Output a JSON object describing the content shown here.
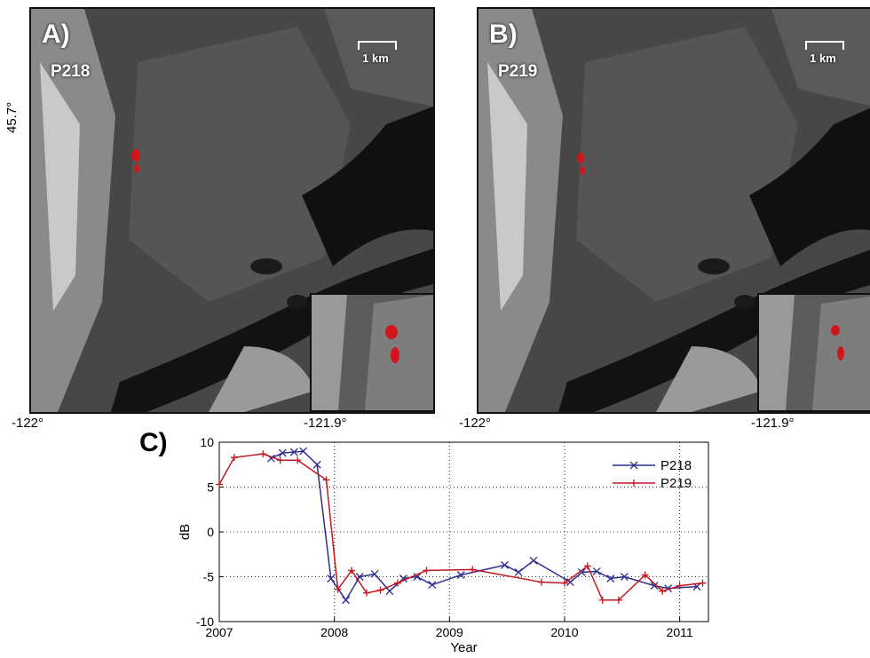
{
  "panels": [
    {
      "letter": "A)",
      "track": "P218",
      "scale": "1 km"
    },
    {
      "letter": "B)",
      "track": "P219",
      "scale": "1 km"
    }
  ],
  "coords": {
    "lat": "45.7°",
    "a_lon_left": "-122°",
    "a_lon_right": "-121.9°",
    "b_lon_left": "-122°",
    "b_lon_right": "-121.9°"
  },
  "chart_label": "C)",
  "chart_data": {
    "type": "line",
    "xlabel": "Year",
    "ylabel": "dB",
    "xlim": [
      2007,
      2011.25
    ],
    "ylim": [
      -10,
      10
    ],
    "xticks": [
      2007,
      2008,
      2009,
      2010,
      2011
    ],
    "yticks": [
      -10,
      -5,
      0,
      5,
      10
    ],
    "grid": true,
    "legend_position": "top-right",
    "series": [
      {
        "name": "P218",
        "color": "#2e2e8f",
        "marker": "x",
        "x": [
          2007.45,
          2007.55,
          2007.65,
          2007.73,
          2007.85,
          2007.97,
          2008.1,
          2008.22,
          2008.35,
          2008.48,
          2008.6,
          2008.72,
          2008.85,
          2009.1,
          2009.48,
          2009.6,
          2009.73,
          2010.05,
          2010.15,
          2010.28,
          2010.4,
          2010.52,
          2010.78,
          2010.9,
          2011.15
        ],
        "y": [
          8.2,
          8.8,
          8.9,
          9.0,
          7.5,
          -5.2,
          -7.6,
          -5.0,
          -4.7,
          -6.6,
          -5.2,
          -5.0,
          -5.9,
          -4.8,
          -3.7,
          -4.5,
          -3.2,
          -5.6,
          -4.5,
          -4.4,
          -5.2,
          -5.0,
          -6.0,
          -6.3,
          -6.1
        ]
      },
      {
        "name": "P219",
        "color": "#c0181e",
        "marker": "+",
        "x": [
          2007.0,
          2007.13,
          2007.38,
          2007.53,
          2007.68,
          2007.93,
          2008.03,
          2008.15,
          2008.28,
          2008.4,
          2008.55,
          2008.8,
          2009.2,
          2009.8,
          2010.0,
          2010.2,
          2010.33,
          2010.47,
          2010.7,
          2010.85,
          2011.0,
          2011.2
        ],
        "y": [
          5.3,
          8.3,
          8.7,
          8.0,
          8.0,
          5.8,
          -6.4,
          -4.3,
          -6.8,
          -6.5,
          -5.7,
          -4.3,
          -4.2,
          -5.6,
          -5.7,
          -3.8,
          -7.6,
          -7.6,
          -4.8,
          -6.6,
          -6.0,
          -5.7
        ]
      }
    ]
  }
}
